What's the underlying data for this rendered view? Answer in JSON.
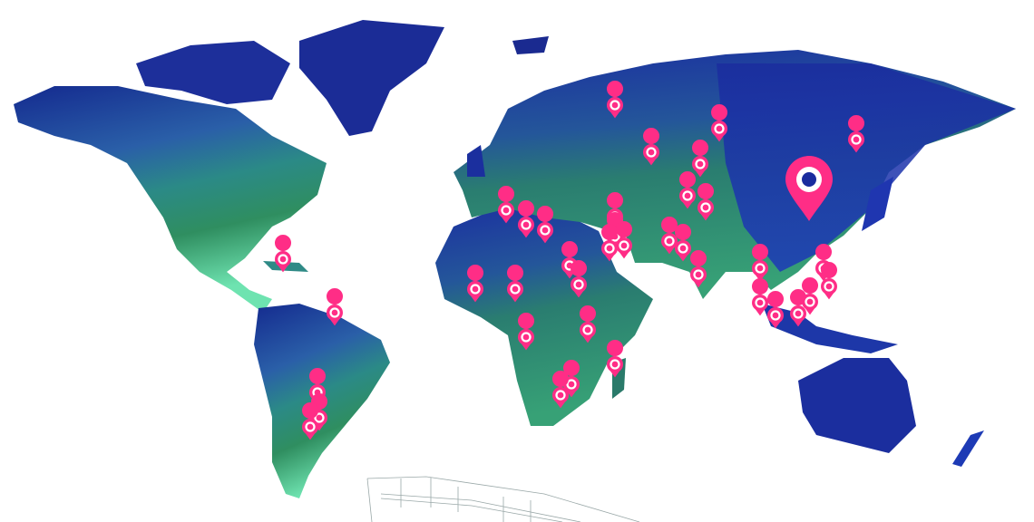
{
  "map": {
    "style": "watercolor world map",
    "colors": {
      "land_north": "#1a2f9e",
      "land_mid": "#2f6f9a",
      "land_tropics": "#2e8a6a",
      "land_south": "#5cd39a",
      "pin": "#ff2d86",
      "pin_inner": "#ffffff",
      "wireframe": "#9aa8a8"
    },
    "pin_icon": "map-pin-icon",
    "highlight_pin_icon": "large-map-pin-icon"
  }
}
